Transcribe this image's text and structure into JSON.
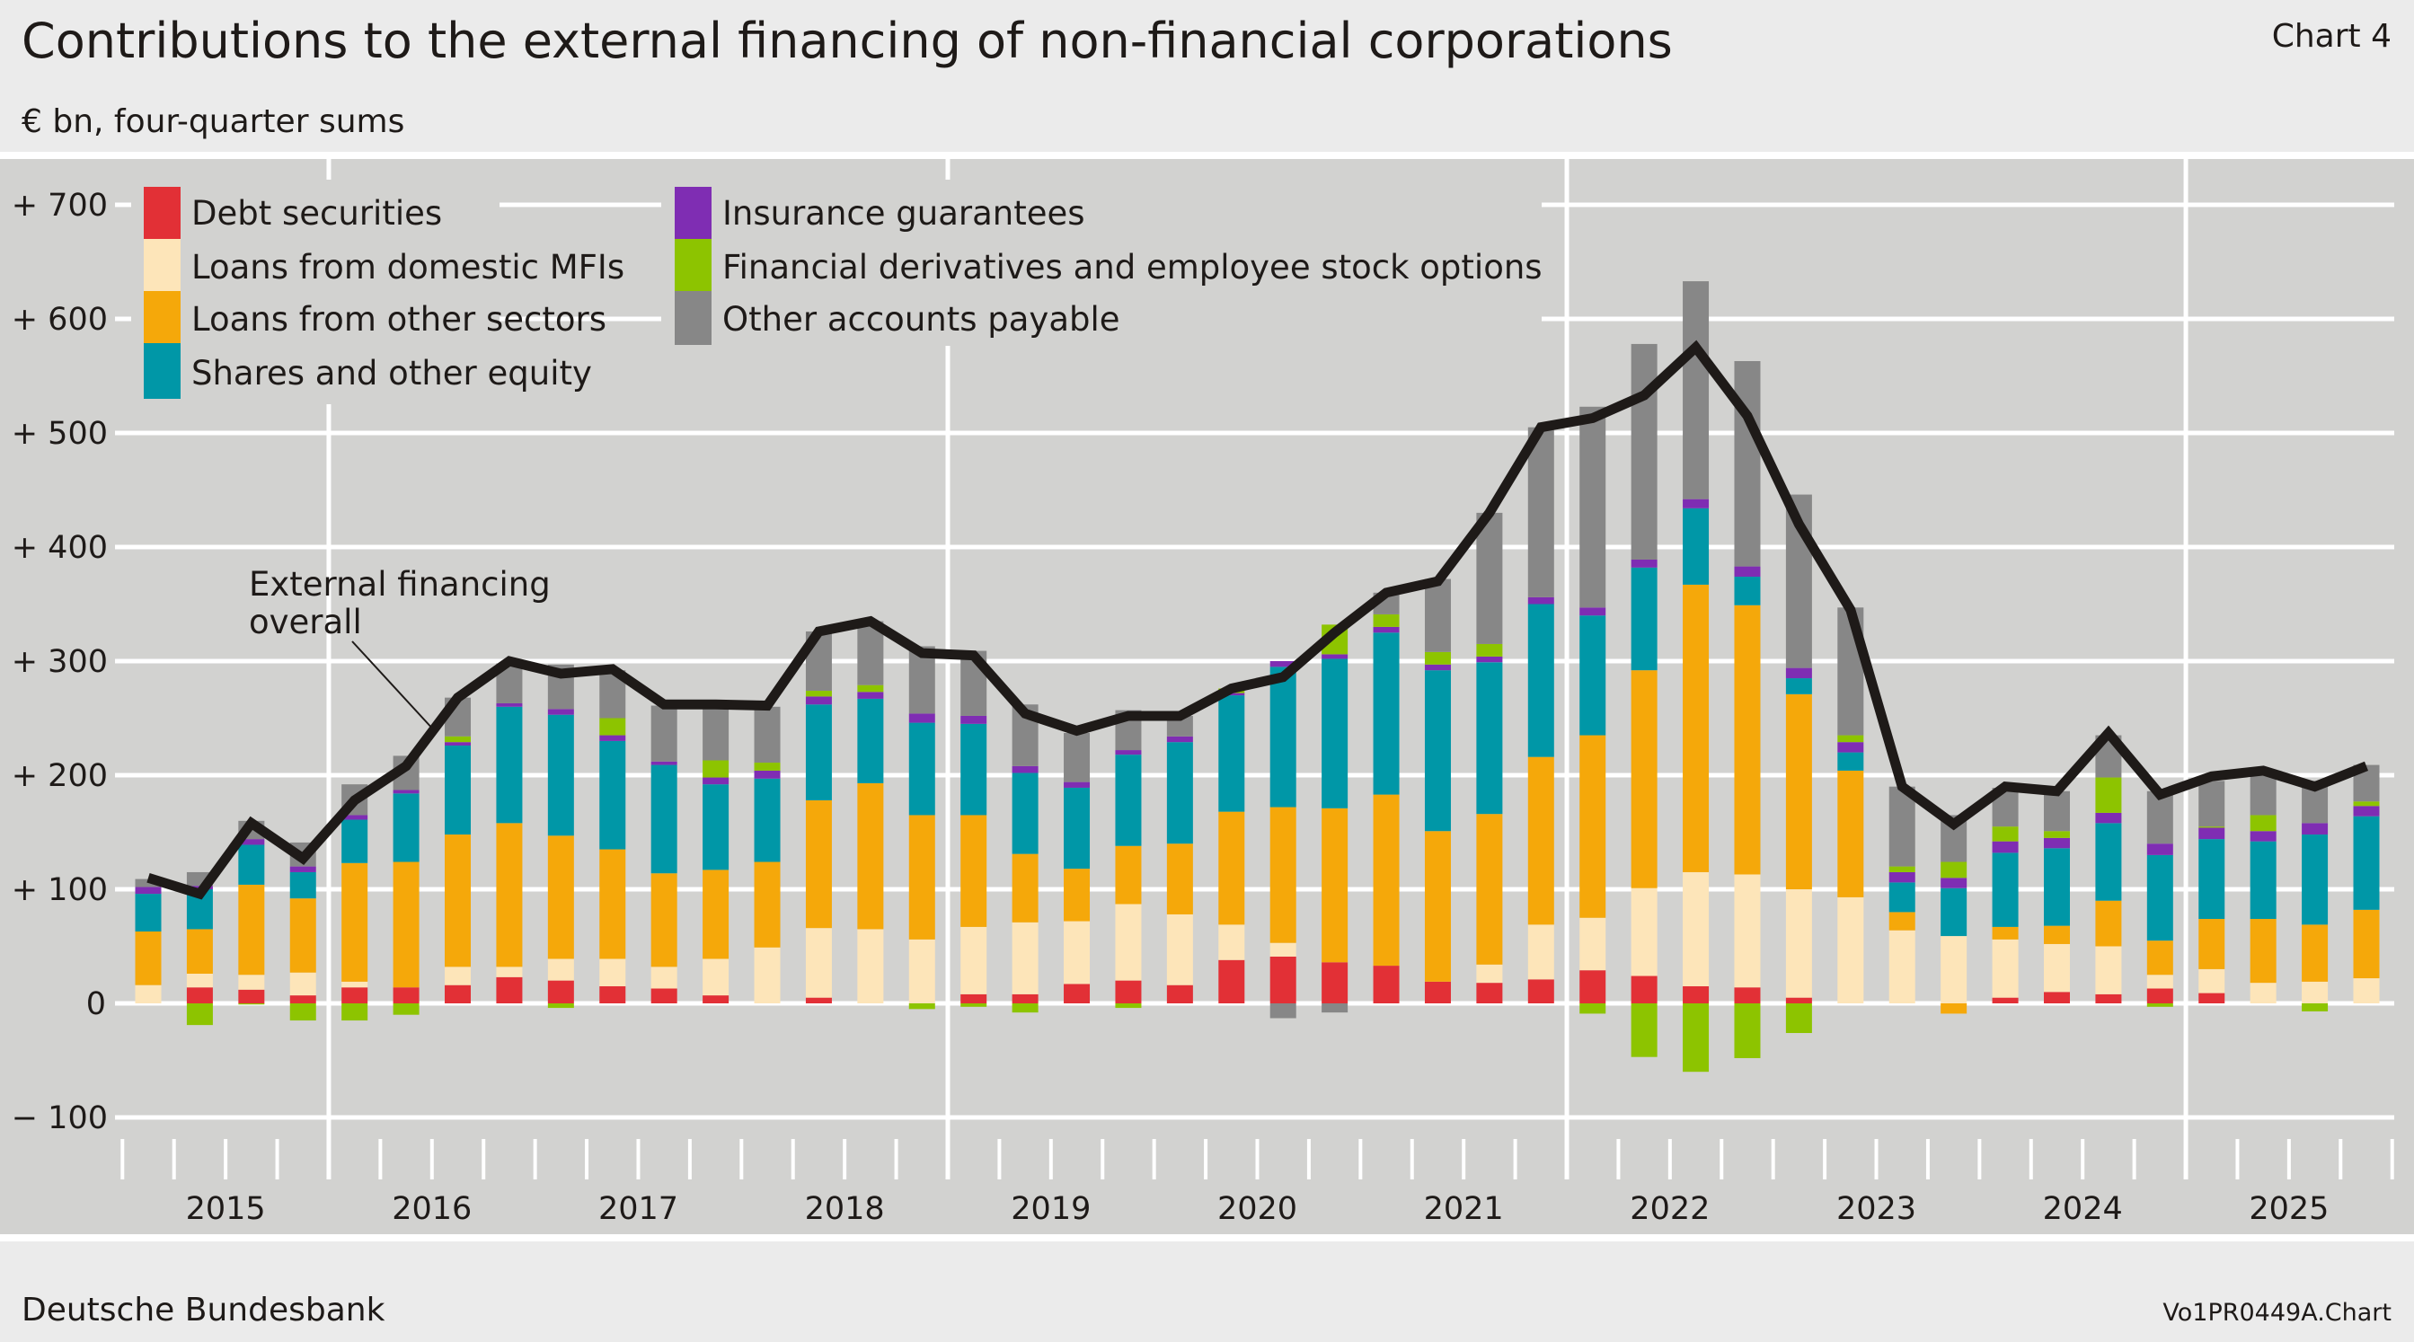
{
  "header": {
    "title": "Contributions to the external financing of non-financial corporations",
    "subtitle": "€ bn, four-quarter sums",
    "chart_number": "Chart 4"
  },
  "footer": {
    "source": "Deutsche Bundesbank",
    "code": "Vo1PR0449A.Chart"
  },
  "chart_data": {
    "type": "bar",
    "stacked": true,
    "ylim": [
      -100,
      700
    ],
    "y_ticks": [
      {
        "value": 700,
        "label": "+ 700"
      },
      {
        "value": 600,
        "label": "+ 600"
      },
      {
        "value": 500,
        "label": "+ 500"
      },
      {
        "value": 400,
        "label": "+ 400"
      },
      {
        "value": 300,
        "label": "+ 300"
      },
      {
        "value": 200,
        "label": "+ 200"
      },
      {
        "value": 100,
        "label": "+ 100"
      },
      {
        "value": 0,
        "label": "0"
      },
      {
        "value": -100,
        "label": "− 100"
      }
    ],
    "x_tick_labels": [
      "2015",
      "2016",
      "2017",
      "2018",
      "2019",
      "2020",
      "2021",
      "2022",
      "2023",
      "2024",
      "2025"
    ],
    "categories": [
      "2015 Q1",
      "2015 Q2",
      "2015 Q3",
      "2015 Q4",
      "2016 Q1",
      "2016 Q2",
      "2016 Q3",
      "2016 Q4",
      "2017 Q1",
      "2017 Q2",
      "2017 Q3",
      "2017 Q4",
      "2018 Q1",
      "2018 Q2",
      "2018 Q3",
      "2018 Q4",
      "2019 Q1",
      "2019 Q2",
      "2019 Q3",
      "2019 Q4",
      "2020 Q1",
      "2020 Q2",
      "2020 Q3",
      "2020 Q4",
      "2021 Q1",
      "2021 Q2",
      "2021 Q3",
      "2021 Q4",
      "2022 Q1",
      "2022 Q2",
      "2022 Q3",
      "2022 Q4",
      "2023 Q1",
      "2023 Q2",
      "2023 Q3",
      "2023 Q4",
      "2024 Q1",
      "2024 Q2",
      "2024 Q3",
      "2024 Q4",
      "2025 Q1",
      "2025 Q2",
      "2025 Q3",
      "2025 Q4"
    ],
    "grid": true,
    "legend_position": "top-left",
    "series": [
      {
        "name": "Debt securities",
        "color": "#e23036",
        "values": [
          0,
          14,
          12,
          7,
          14,
          14,
          16,
          23,
          20,
          15,
          13,
          7,
          0,
          5,
          0,
          0,
          8,
          8,
          17,
          20,
          16,
          38,
          41,
          36,
          33,
          19,
          18,
          21,
          29,
          24,
          15,
          14,
          5,
          0,
          0,
          0,
          5,
          10,
          8,
          13,
          9,
          0,
          0,
          0
        ]
      },
      {
        "name": "Loans from domestic MFIs",
        "color": "#fde5b9",
        "values": [
          16,
          12,
          13,
          20,
          5,
          0,
          16,
          9,
          19,
          24,
          19,
          32,
          49,
          61,
          65,
          56,
          59,
          63,
          55,
          67,
          62,
          31,
          12,
          0,
          0,
          0,
          16,
          48,
          46,
          77,
          100,
          99,
          95,
          93,
          64,
          59,
          51,
          42,
          42,
          12,
          21,
          18,
          19,
          22
        ]
      },
      {
        "name": "Loans from other sectors",
        "color": "#f5a80a",
        "values": [
          47,
          39,
          79,
          65,
          104,
          110,
          116,
          126,
          108,
          96,
          82,
          78,
          75,
          112,
          128,
          109,
          98,
          60,
          46,
          51,
          62,
          99,
          119,
          135,
          150,
          132,
          132,
          147,
          160,
          191,
          252,
          236,
          171,
          111,
          16,
          -9,
          11,
          16,
          40,
          30,
          44,
          56,
          50,
          60
        ]
      },
      {
        "name": "Shares and other equity",
        "color": "#0097a7",
        "values": [
          33,
          35,
          35,
          23,
          38,
          60,
          78,
          102,
          106,
          95,
          95,
          75,
          73,
          84,
          74,
          81,
          80,
          71,
          71,
          80,
          89,
          102,
          123,
          131,
          142,
          141,
          133,
          134,
          105,
          90,
          67,
          25,
          14,
          16,
          26,
          42,
          65,
          68,
          68,
          75,
          70,
          68,
          79,
          82
        ]
      },
      {
        "name": "Insurance guarantees",
        "color": "#7f2db3",
        "values": [
          6,
          3,
          5,
          5,
          4,
          3,
          3,
          3,
          5,
          5,
          3,
          6,
          7,
          7,
          6,
          8,
          7,
          6,
          5,
          4,
          5,
          2,
          5,
          4,
          5,
          5,
          5,
          6,
          7,
          7,
          8,
          9,
          9,
          9,
          9,
          9,
          10,
          9,
          9,
          10,
          10,
          9,
          10,
          9
        ]
      },
      {
        "name": "Financial derivatives and employee stock options",
        "color": "#8dc400",
        "values": [
          0,
          -19,
          -1,
          -15,
          -15,
          -10,
          5,
          0,
          -4,
          15,
          0,
          15,
          7,
          5,
          6,
          -5,
          -3,
          -8,
          0,
          -4,
          0,
          4,
          0,
          26,
          11,
          11,
          11,
          0,
          -9,
          -47,
          -60,
          -48,
          -26,
          6,
          5,
          14,
          13,
          6,
          31,
          -3,
          1,
          14,
          -7,
          4
        ]
      },
      {
        "name": "Other accounts payable",
        "color": "#878787",
        "values": [
          7,
          12,
          16,
          21,
          27,
          30,
          34,
          35,
          39,
          42,
          49,
          45,
          49,
          52,
          56,
          59,
          57,
          54,
          43,
          35,
          18,
          0,
          -13,
          -8,
          19,
          64,
          115,
          149,
          176,
          189,
          191,
          180,
          152,
          112,
          70,
          41,
          34,
          35,
          37,
          46,
          40,
          38,
          37,
          32
        ]
      }
    ],
    "line": {
      "name": "External financing overall",
      "color": "#1e1a18",
      "values": [
        110,
        96,
        158,
        127,
        178,
        208,
        268,
        300,
        289,
        293,
        262,
        262,
        261,
        326,
        335,
        307,
        305,
        254,
        239,
        252,
        252,
        276,
        286,
        325,
        360,
        370,
        430,
        505,
        513,
        533,
        575,
        515,
        420,
        345,
        190,
        157,
        190,
        186,
        237,
        183,
        199,
        204,
        190,
        208
      ]
    },
    "annotation": {
      "line1": "External financing",
      "line2": "overall"
    }
  }
}
